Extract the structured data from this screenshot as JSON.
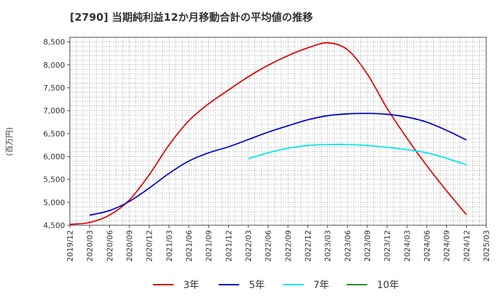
{
  "chart_data": {
    "type": "line",
    "title": "[2790]  当期純利益12か月移動合計の平均値の推移",
    "ylabel": "(百万円)",
    "xlabel": "",
    "ylim": [
      4500,
      8600
    ],
    "yticks": [
      4500,
      5000,
      5500,
      6000,
      6500,
      7000,
      7500,
      8000,
      8500
    ],
    "ytick_labels": [
      "4,500",
      "5,000",
      "5,500",
      "6,000",
      "6,500",
      "7,000",
      "7,500",
      "8,000",
      "8,500"
    ],
    "xticks": [
      "2019/12",
      "2020/03",
      "2020/06",
      "2020/09",
      "2020/12",
      "2021/03",
      "2021/06",
      "2021/09",
      "2021/12",
      "2022/03",
      "2022/06",
      "2022/09",
      "2022/12",
      "2023/03",
      "2023/06",
      "2023/09",
      "2023/12",
      "2024/03",
      "2024/06",
      "2024/09",
      "2024/12",
      "2025/03"
    ],
    "grid": true,
    "legend_position": "bottom",
    "series": [
      {
        "name": "3年",
        "color": "#dd0000",
        "x": [
          "2019/12",
          "2020/03",
          "2020/06",
          "2020/09",
          "2020/12",
          "2021/03",
          "2021/06",
          "2021/09",
          "2021/12",
          "2022/03",
          "2022/06",
          "2022/09",
          "2022/12",
          "2023/03",
          "2023/06",
          "2023/09",
          "2023/12",
          "2024/03",
          "2024/06",
          "2024/09",
          "2024/12"
        ],
        "values": [
          4520,
          4560,
          4720,
          5050,
          5600,
          6250,
          6780,
          7150,
          7450,
          7740,
          7990,
          8200,
          8370,
          8480,
          8330,
          7800,
          7050,
          6400,
          5800,
          5250,
          4730
        ]
      },
      {
        "name": "5年",
        "color": "#0000cc",
        "x": [
          "2020/03",
          "2020/06",
          "2020/09",
          "2020/12",
          "2021/03",
          "2021/06",
          "2021/09",
          "2021/12",
          "2022/03",
          "2022/06",
          "2022/09",
          "2022/12",
          "2023/03",
          "2023/06",
          "2023/09",
          "2023/12",
          "2024/03",
          "2024/06",
          "2024/09",
          "2024/12"
        ],
        "values": [
          4720,
          4820,
          5020,
          5310,
          5630,
          5900,
          6080,
          6210,
          6370,
          6530,
          6670,
          6800,
          6890,
          6930,
          6940,
          6920,
          6860,
          6750,
          6570,
          6360
        ]
      },
      {
        "name": "7年",
        "color": "#00e5ee",
        "x": [
          "2022/03",
          "2022/06",
          "2022/09",
          "2022/12",
          "2023/03",
          "2023/06",
          "2023/09",
          "2023/12",
          "2024/03",
          "2024/06",
          "2024/09",
          "2024/12"
        ],
        "values": [
          5950,
          6080,
          6180,
          6240,
          6260,
          6260,
          6240,
          6200,
          6150,
          6080,
          5960,
          5820
        ]
      },
      {
        "name": "10年",
        "color": "#228b22",
        "x": [],
        "values": []
      }
    ]
  }
}
